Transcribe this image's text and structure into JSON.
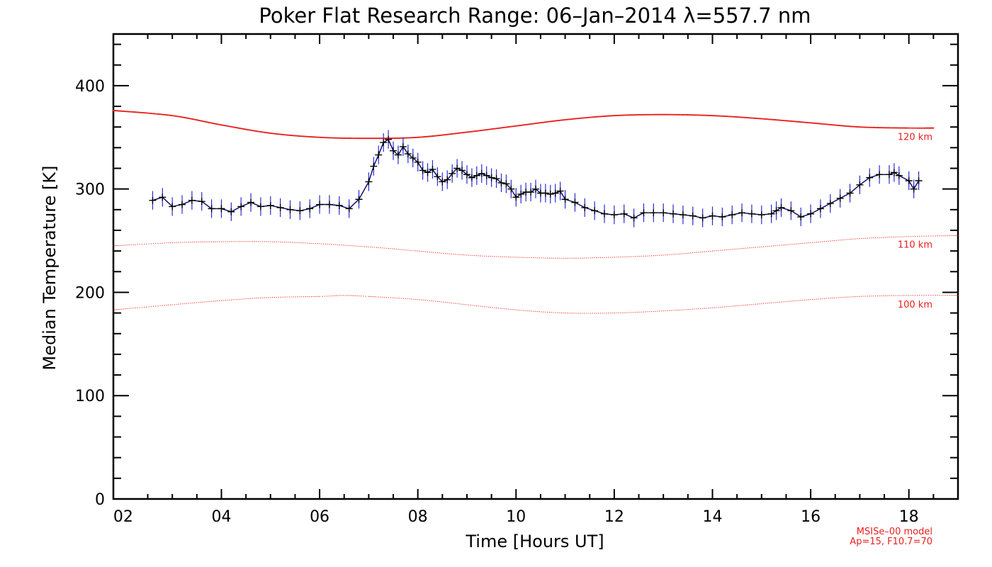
{
  "chart_data": {
    "type": "line",
    "title": "Poker Flat Research Range: 06–Jan–2014 λ=557.7 nm",
    "xlabel": "Time [Hours UT]",
    "ylabel": "Median Temperature [K]",
    "xlim": [
      1.8,
      19.0
    ],
    "ylim": [
      0,
      450
    ],
    "x_ticks": [
      2,
      4,
      6,
      8,
      10,
      12,
      14,
      16,
      18
    ],
    "x_tick_labels": [
      "02",
      "04",
      "06",
      "08",
      "10",
      "12",
      "14",
      "16",
      "18"
    ],
    "y_ticks": [
      0,
      100,
      200,
      300,
      400
    ],
    "y_tick_labels": [
      "0",
      "100",
      "200",
      "300",
      "400"
    ],
    "grid": false,
    "series": [
      {
        "color": "#00006e",
        "error_color": "#2a2ad8",
        "marker": "plus",
        "error_bar": 9,
        "x": [
          2.6,
          2.8,
          3.0,
          3.2,
          3.4,
          3.6,
          3.8,
          4.0,
          4.2,
          4.4,
          4.6,
          4.8,
          5.0,
          5.2,
          5.4,
          5.6,
          5.8,
          6.0,
          6.2,
          6.4,
          6.6,
          6.8,
          7.0,
          7.1,
          7.2,
          7.3,
          7.4,
          7.5,
          7.6,
          7.7,
          7.8,
          7.9,
          8.0,
          8.1,
          8.2,
          8.3,
          8.4,
          8.5,
          8.6,
          8.7,
          8.8,
          8.9,
          9.0,
          9.1,
          9.2,
          9.3,
          9.4,
          9.5,
          9.6,
          9.7,
          9.8,
          9.9,
          10.0,
          10.1,
          10.2,
          10.3,
          10.4,
          10.5,
          10.6,
          10.7,
          10.8,
          10.9,
          11.0,
          11.2,
          11.4,
          11.6,
          11.8,
          12.0,
          12.2,
          12.4,
          12.6,
          12.8,
          13.0,
          13.2,
          13.4,
          13.6,
          13.8,
          14.0,
          14.2,
          14.4,
          14.6,
          14.8,
          15.0,
          15.2,
          15.3,
          15.4,
          15.6,
          15.8,
          16.0,
          16.2,
          16.4,
          16.6,
          16.8,
          17.0,
          17.2,
          17.4,
          17.6,
          17.7,
          17.8,
          18.0,
          18.1,
          18.2
        ],
        "y": [
          289,
          292,
          283,
          285,
          289,
          288,
          281,
          281,
          278,
          283,
          287,
          283,
          284,
          282,
          280,
          279,
          281,
          285,
          285,
          284,
          281,
          290,
          307,
          322,
          333,
          345,
          348,
          337,
          333,
          341,
          334,
          330,
          326,
          318,
          316,
          319,
          312,
          307,
          309,
          315,
          320,
          318,
          314,
          311,
          313,
          315,
          313,
          311,
          310,
          306,
          305,
          300,
          292,
          295,
          297,
          297,
          300,
          296,
          296,
          295,
          296,
          298,
          290,
          287,
          282,
          279,
          276,
          275,
          276,
          272,
          277,
          277,
          277,
          276,
          275,
          274,
          272,
          274,
          273,
          275,
          277,
          276,
          275,
          276,
          279,
          282,
          279,
          273,
          276,
          281,
          286,
          291,
          296,
          304,
          311,
          314,
          314,
          316,
          313,
          308,
          300,
          308
        ]
      }
    ],
    "model_curves": [
      {
        "label": "120 km",
        "color": "#e8201e",
        "style": "dense",
        "x": [
          1.8,
          3.0,
          4.0,
          5.0,
          6.0,
          7.0,
          8.0,
          9.0,
          10.0,
          11.0,
          12.0,
          13.0,
          14.0,
          15.0,
          16.0,
          17.0,
          18.0,
          18.5
        ],
        "y": [
          376,
          371,
          362,
          354,
          350,
          349,
          350,
          355,
          361,
          367,
          371,
          372,
          371,
          368,
          364,
          360,
          359,
          359
        ]
      },
      {
        "label": "110 km",
        "color": "#e8201e",
        "style": "sparse",
        "x": [
          1.8,
          3.0,
          4.0,
          5.0,
          6.0,
          7.0,
          8.0,
          9.0,
          10.0,
          11.0,
          12.0,
          13.0,
          14.0,
          15.0,
          16.0,
          17.0,
          18.0,
          19.0
        ],
        "y": [
          245,
          248,
          249,
          249,
          247,
          244,
          240,
          236,
          234,
          233,
          234,
          236,
          240,
          244,
          248,
          252,
          254,
          255
        ]
      },
      {
        "label": "100 km",
        "color": "#e8201e",
        "style": "sparse",
        "x": [
          1.8,
          3.0,
          4.0,
          5.0,
          6.0,
          6.5,
          7.0,
          8.0,
          9.0,
          10.0,
          11.0,
          12.0,
          13.0,
          14.0,
          15.0,
          16.0,
          17.0,
          18.0,
          19.0
        ],
        "y": [
          183,
          188,
          192,
          195,
          196,
          197,
          196,
          193,
          188,
          183,
          180,
          180,
          182,
          185,
          189,
          193,
          196,
          197,
          197
        ]
      }
    ],
    "model_notes": [
      "MSISe–00 model",
      "Ap=15, F10.7=70"
    ]
  }
}
